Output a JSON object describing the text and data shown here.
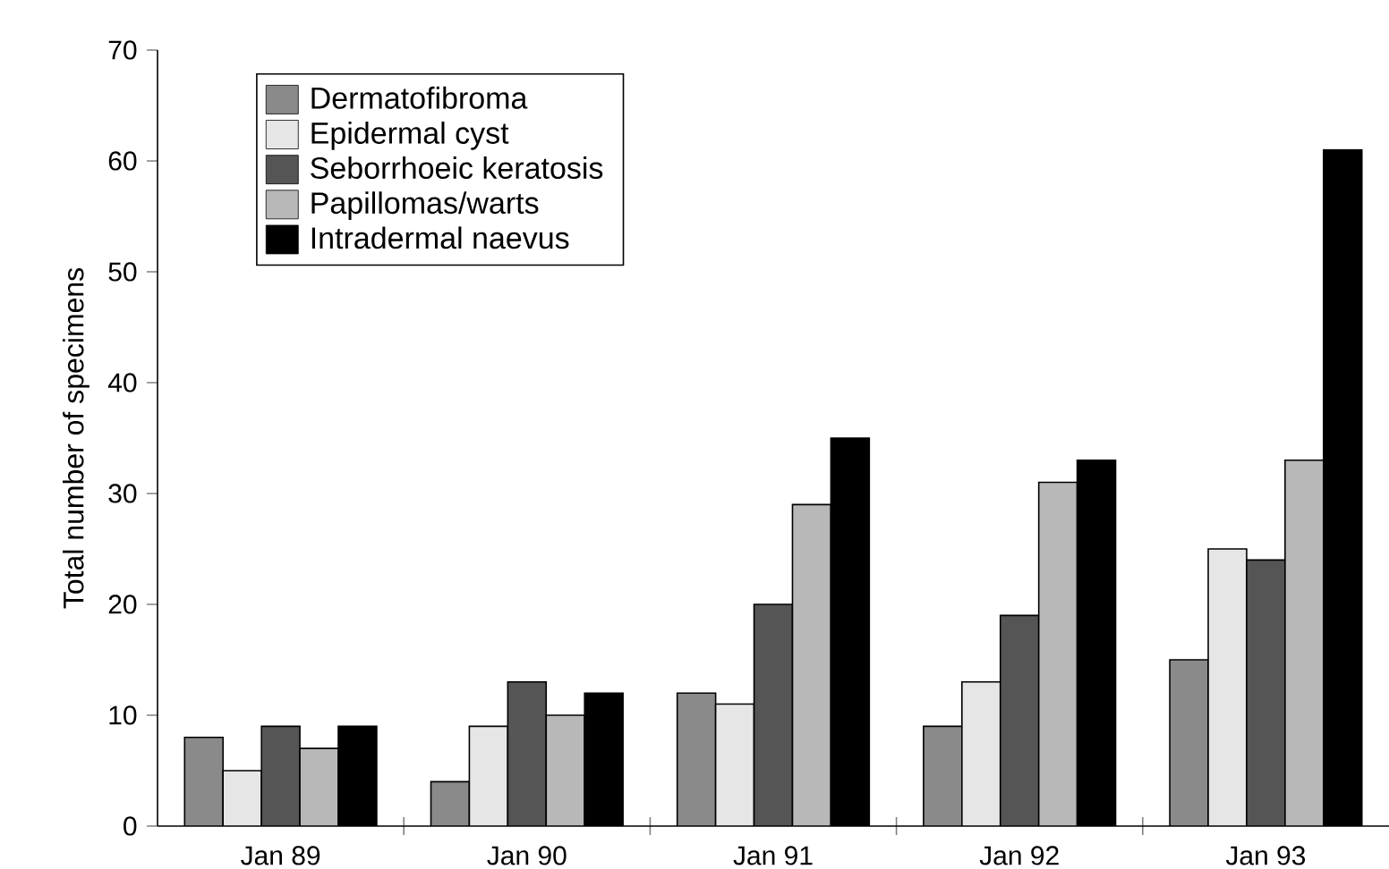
{
  "chart_data": {
    "type": "bar",
    "ylabel": "Total number of specimens",
    "categories": [
      "Jan 89",
      "Jan 90",
      "Jan 91",
      "Jan 92",
      "Jan 93"
    ],
    "series": [
      {
        "name": "Dermatofibroma",
        "color": "#8a8a8a",
        "values": [
          8,
          4,
          12,
          9,
          15
        ]
      },
      {
        "name": "Epidermal cyst",
        "color": "#e6e6e6",
        "values": [
          5,
          9,
          11,
          13,
          25
        ]
      },
      {
        "name": "Seborrhoeic keratosis",
        "color": "#555555",
        "values": [
          9,
          13,
          20,
          19,
          24
        ]
      },
      {
        "name": "Papillomas/warts",
        "color": "#b8b8b8",
        "values": [
          7,
          10,
          29,
          31,
          33
        ]
      },
      {
        "name": "Intradermal naevus",
        "color": "#000000",
        "values": [
          9,
          12,
          35,
          33,
          61
        ]
      }
    ],
    "ylim": [
      0,
      70
    ],
    "yticks": [
      0,
      10,
      20,
      30,
      40,
      50,
      60,
      70
    ],
    "grid": false,
    "legend": "top left"
  }
}
